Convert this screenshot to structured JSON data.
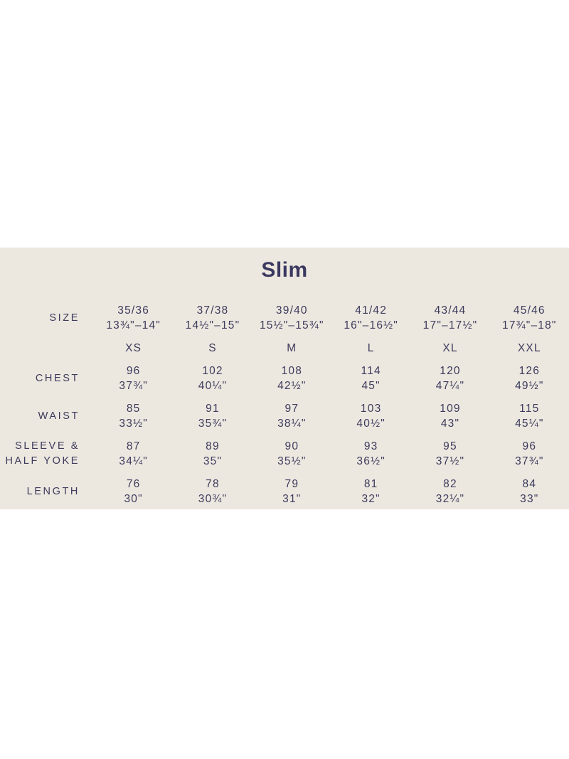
{
  "colors": {
    "page_bg": "#ffffff",
    "panel_bg": "#ece8e0",
    "text_navy": "#3d3a5c"
  },
  "chart_data": {
    "type": "table",
    "title": "Slim",
    "size_row_label": "SIZE",
    "columns": [
      {
        "size": "35/36",
        "collar": "13¾\"–14\"",
        "letter": "XS"
      },
      {
        "size": "37/38",
        "collar": "14½\"–15\"",
        "letter": "S"
      },
      {
        "size": "39/40",
        "collar": "15½\"–15¾\"",
        "letter": "M"
      },
      {
        "size": "41/42",
        "collar": "16\"–16½\"",
        "letter": "L"
      },
      {
        "size": "43/44",
        "collar": "17\"–17½\"",
        "letter": "XL"
      },
      {
        "size": "45/46",
        "collar": "17¾\"–18\"",
        "letter": "XXL"
      }
    ],
    "rows": [
      {
        "label": "CHEST",
        "label_lines": [
          "CHEST"
        ],
        "cm": [
          96,
          102,
          108,
          114,
          120,
          126
        ],
        "inches": [
          "37¾\"",
          "40¼\"",
          "42½\"",
          "45\"",
          "47¼\"",
          "49½\""
        ]
      },
      {
        "label": "WAIST",
        "label_lines": [
          "WAIST"
        ],
        "cm": [
          85,
          91,
          97,
          103,
          109,
          115
        ],
        "inches": [
          "33½\"",
          "35¾\"",
          "38¼\"",
          "40½\"",
          "43\"",
          "45¼\""
        ]
      },
      {
        "label": "SLEEVE & HALF YOKE",
        "label_lines": [
          "SLEEVE &",
          "HALF YOKE"
        ],
        "cm": [
          87,
          89,
          90,
          93,
          95,
          96
        ],
        "inches": [
          "34¼\"",
          "35\"",
          "35½\"",
          "36½\"",
          "37½\"",
          "37¾\""
        ]
      },
      {
        "label": "LENGTH",
        "label_lines": [
          "LENGTH"
        ],
        "cm": [
          76,
          78,
          79,
          81,
          82,
          84
        ],
        "inches": [
          "30\"",
          "30¾\"",
          "31\"",
          "32\"",
          "32¼\"",
          "33\""
        ]
      }
    ]
  }
}
